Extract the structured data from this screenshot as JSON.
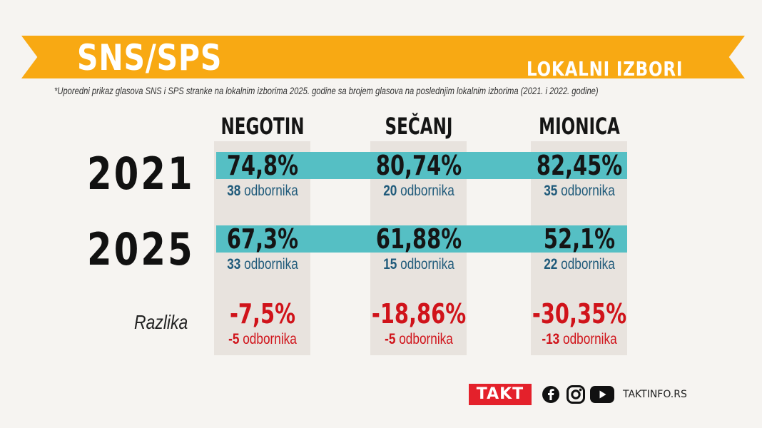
{
  "banner": {
    "title": "SNS/SPS",
    "subtitle": "LOKALNI IZBORI"
  },
  "note": "*Uporedni prikaz glasova SNS i SPS stranke na lokalnim izborima 2025. godine sa brojem glasova na poslednjim lokalnim izborima (2021. i 2022. godine)",
  "columns": [
    "NEGOTIN",
    "SEČANJ",
    "MIONICA"
  ],
  "rows": [
    {
      "year": "2021",
      "pct": [
        "74,8%",
        "80,74%",
        "82,45%"
      ],
      "count": [
        "38",
        "20",
        "35"
      ]
    },
    {
      "year": "2025",
      "pct": [
        "67,3%",
        "61,88%",
        "52,1%"
      ],
      "count": [
        "33",
        "15",
        "22"
      ]
    }
  ],
  "diff": {
    "label": "Razlika",
    "pct": [
      "-7,5%",
      "-18,86%",
      "-30,35%"
    ],
    "count": [
      "-5",
      "-5",
      "-13"
    ]
  },
  "unit": "odbornika",
  "footer": {
    "logo": "TAKT",
    "site": "TAKTINFO.RS",
    "icons": [
      "facebook-icon",
      "instagram-icon",
      "youtube-icon"
    ]
  },
  "colors": {
    "banner": "#f8a913",
    "band": "#55bfc4",
    "negative": "#d0131a",
    "logo": "#e4212b"
  }
}
